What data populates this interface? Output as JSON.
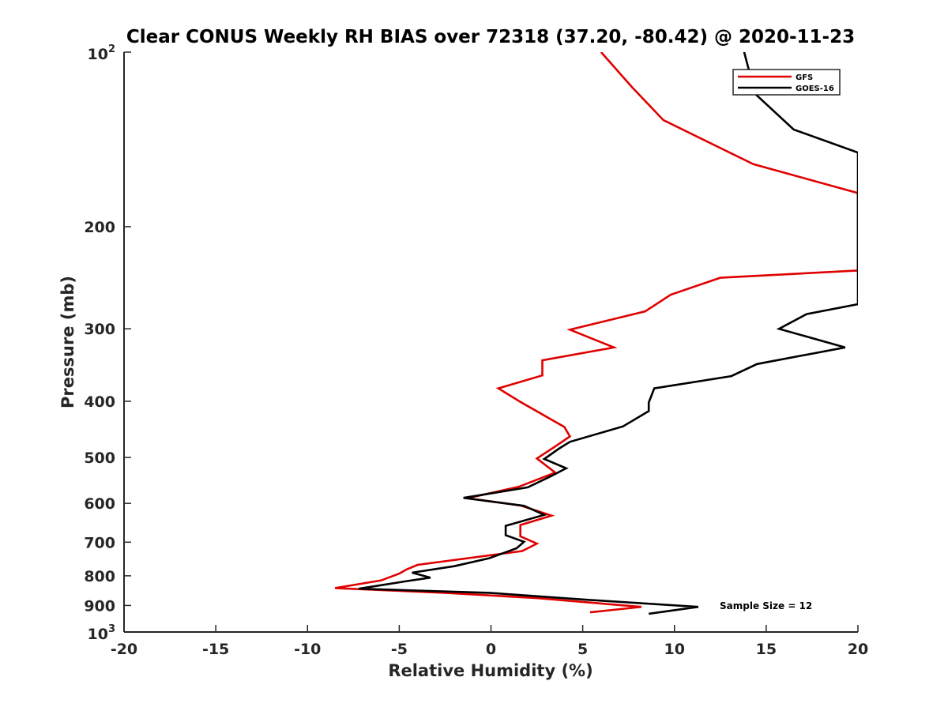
{
  "chart_data": {
    "type": "line",
    "title": "Clear CONUS Weekly RH BIAS over 72318 (37.20, -80.42) @ 2020-11-23",
    "xlabel": "Relative Humidity (%)",
    "ylabel": "Pressure (mb)",
    "xlim": [
      -20,
      20
    ],
    "ylim": [
      100,
      1000
    ],
    "y_scale": "log",
    "y_reversed": true,
    "x_ticks": [
      -20,
      -15,
      -10,
      -5,
      0,
      5,
      10,
      15,
      20
    ],
    "x_tick_labels": [
      "-20",
      "-15",
      "-10",
      "-5",
      "0",
      "5",
      "10",
      "15",
      "20"
    ],
    "y_ticks": [
      200,
      300,
      400,
      500,
      600,
      700,
      800,
      900
    ],
    "y_tick_labels": [
      "200",
      "300",
      "400",
      "500",
      "600",
      "700",
      "800",
      "900"
    ],
    "y_top_label": {
      "base": "10",
      "exp": "2"
    },
    "y_bottom_label": {
      "base": "10",
      "exp": "3"
    },
    "grid": false,
    "legend_position": "top-right",
    "annotation": "Sample Size = 12",
    "series": [
      {
        "name": "GFS",
        "color": "#e00000",
        "points": [
          [
            6.0,
            100
          ],
          [
            7.7,
            115
          ],
          [
            9.4,
            131
          ],
          [
            14.3,
            156
          ],
          [
            20.0,
            175
          ],
          [
            20.0,
            238
          ],
          [
            12.5,
            245
          ],
          [
            9.8,
            262
          ],
          [
            8.4,
            280
          ],
          [
            4.3,
            301
          ],
          [
            6.7,
            323
          ],
          [
            2.8,
            340
          ],
          [
            2.8,
            361
          ],
          [
            0.4,
            380
          ],
          [
            1.6,
            401
          ],
          [
            4.0,
            443
          ],
          [
            4.3,
            460
          ],
          [
            3.4,
            481
          ],
          [
            2.5,
            502
          ],
          [
            3.5,
            531
          ],
          [
            1.5,
            562
          ],
          [
            -1.3,
            588
          ],
          [
            1.6,
            605
          ],
          [
            3.3,
            630
          ],
          [
            1.6,
            654
          ],
          [
            1.6,
            684
          ],
          [
            2.5,
            704
          ],
          [
            1.7,
            725
          ],
          [
            -4.0,
            766
          ],
          [
            -4.6,
            780
          ],
          [
            -5.0,
            793
          ],
          [
            -6.0,
            815
          ],
          [
            -8.5,
            840
          ],
          [
            -2.5,
            856
          ],
          [
            2.5,
            874
          ],
          [
            8.2,
            905
          ],
          [
            5.4,
            925
          ]
        ]
      },
      {
        "name": "GOES-16",
        "color": "#000000",
        "points": [
          [
            13.5,
            92
          ],
          [
            14.4,
            118
          ],
          [
            16.5,
            136
          ],
          [
            20.0,
            149
          ],
          [
            20.0,
            272
          ],
          [
            17.2,
            283
          ],
          [
            15.7,
            300
          ],
          [
            19.3,
            323
          ],
          [
            14.5,
            345
          ],
          [
            13.1,
            362
          ],
          [
            8.9,
            380
          ],
          [
            8.6,
            402
          ],
          [
            8.6,
            416
          ],
          [
            7.2,
            442
          ],
          [
            4.3,
            470
          ],
          [
            3.7,
            483
          ],
          [
            2.9,
            503
          ],
          [
            4.1,
            522
          ],
          [
            3.2,
            540
          ],
          [
            2.0,
            563
          ],
          [
            -1.5,
            587
          ],
          [
            1.8,
            606
          ],
          [
            2.9,
            628
          ],
          [
            0.8,
            656
          ],
          [
            0.8,
            681
          ],
          [
            1.8,
            699
          ],
          [
            1.4,
            717
          ],
          [
            -0.1,
            746
          ],
          [
            -2.0,
            770
          ],
          [
            -4.3,
            790
          ],
          [
            -3.3,
            806
          ],
          [
            -4.6,
            817
          ],
          [
            -7.2,
            842
          ],
          [
            -0.1,
            856
          ],
          [
            5.3,
            880
          ],
          [
            11.3,
            905
          ],
          [
            8.6,
            930
          ]
        ]
      }
    ]
  }
}
